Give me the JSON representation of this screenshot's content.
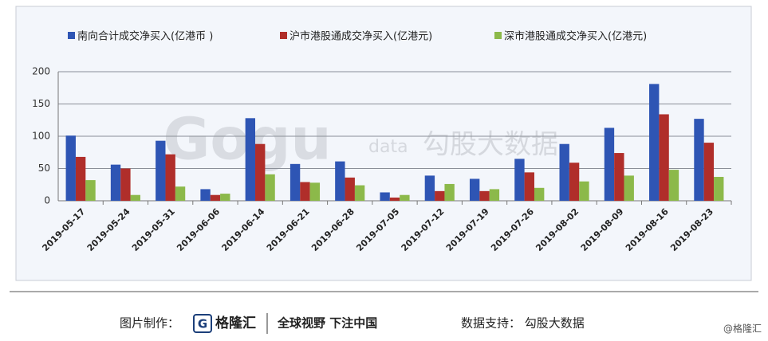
{
  "chart_data": {
    "type": "bar",
    "categories": [
      "2019-05-17",
      "2019-05-24",
      "2019-05-31",
      "2019-06-06",
      "2019-06-14",
      "2019-06-21",
      "2019-06-28",
      "2019-07-05",
      "2019-07-12",
      "2019-07-19",
      "2019-07-26",
      "2019-08-02",
      "2019-08-09",
      "2019-08-16",
      "2019-08-23"
    ],
    "series": [
      {
        "name": "南向合计成交净买入(亿港币 )",
        "color": "#2e55b4",
        "values": [
          101,
          56,
          93,
          18,
          128,
          57,
          61,
          13,
          39,
          34,
          65,
          88,
          113,
          181,
          127
        ]
      },
      {
        "name": "沪市港股通成交净买入(亿港元)",
        "color": "#b02e2a",
        "values": [
          68,
          50,
          72,
          9,
          88,
          29,
          36,
          5,
          15,
          15,
          44,
          59,
          74,
          134,
          90
        ]
      },
      {
        "name": "深市港股通成交净买入(亿港元)",
        "color": "#8cb94a",
        "values": [
          32,
          9,
          22,
          11,
          41,
          28,
          24,
          9,
          26,
          18,
          20,
          30,
          39,
          48,
          37
        ]
      }
    ],
    "ylim": [
      0,
      200
    ],
    "yticks": [
      0,
      50,
      100,
      150,
      200
    ],
    "grid": true,
    "legend": "top"
  },
  "watermark": {
    "logo": "Gogu",
    "sub": "data",
    "name": "勾股大数据"
  },
  "footer": {
    "made_by": "图片制作：",
    "brand": "格隆汇",
    "slogan": "全球视野 下注中国",
    "source": "数据支持：  勾股大数据",
    "credit": "@格隆汇"
  }
}
